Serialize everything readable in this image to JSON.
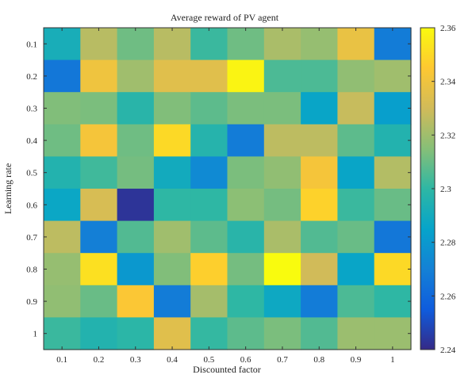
{
  "chart_data": {
    "type": "heatmap",
    "title": "Average reward of PV agent",
    "xlabel": "Discounted factor",
    "ylabel": "Learning rate",
    "x_categories": [
      "0.1",
      "0.2",
      "0.3",
      "0.4",
      "0.5",
      "0.6",
      "0.7",
      "0.8",
      "0.9",
      "1"
    ],
    "y_categories": [
      "0.1",
      "0.2",
      "0.3",
      "0.4",
      "0.5",
      "0.6",
      "0.7",
      "0.8",
      "0.9",
      "1"
    ],
    "values": [
      [
        2.292,
        2.325,
        2.311,
        2.325,
        2.302,
        2.311,
        2.322,
        2.318,
        2.338,
        2.268
      ],
      [
        2.266,
        2.34,
        2.32,
        2.335,
        2.335,
        2.358,
        2.305,
        2.305,
        2.317,
        2.32
      ],
      [
        2.314,
        2.313,
        2.298,
        2.314,
        2.308,
        2.313,
        2.313,
        2.286,
        2.328,
        2.283
      ],
      [
        2.311,
        2.342,
        2.311,
        2.35,
        2.297,
        2.268,
        2.326,
        2.326,
        2.308,
        2.296
      ],
      [
        2.296,
        2.303,
        2.312,
        2.29,
        2.274,
        2.313,
        2.317,
        2.342,
        2.286,
        2.324
      ],
      [
        2.287,
        2.332,
        2.243,
        2.3,
        2.3,
        2.316,
        2.312,
        2.348,
        2.302,
        2.31
      ],
      [
        2.326,
        2.269,
        2.306,
        2.32,
        2.308,
        2.298,
        2.322,
        2.306,
        2.31,
        2.266
      ],
      [
        2.318,
        2.352,
        2.28,
        2.314,
        2.347,
        2.312,
        2.36,
        2.33,
        2.286,
        2.35
      ],
      [
        2.317,
        2.31,
        2.344,
        2.268,
        2.321,
        2.3,
        2.288,
        2.268,
        2.305,
        2.3
      ],
      [
        2.302,
        2.296,
        2.299,
        2.335,
        2.301,
        2.308,
        2.313,
        2.306,
        2.319,
        2.319
      ]
    ],
    "colorbar": {
      "min": 2.24,
      "max": 2.36,
      "ticks": [
        "2.24",
        "2.26",
        "2.28",
        "2.3",
        "2.32",
        "2.34",
        "2.36"
      ],
      "colormap": "parula"
    }
  }
}
